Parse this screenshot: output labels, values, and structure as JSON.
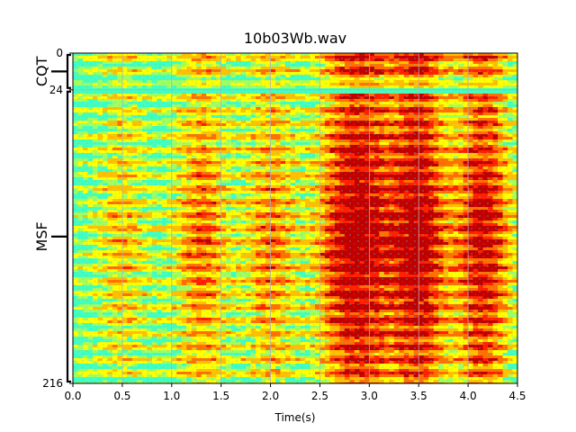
{
  "chart_data": {
    "type": "heatmap",
    "title": "10b03Wb.wav",
    "xlabel": "Time(s)",
    "xlim": [
      0.0,
      4.5
    ],
    "x_ticks": [
      0.0,
      0.5,
      1.0,
      1.5,
      2.0,
      2.5,
      3.0,
      3.5,
      4.0,
      4.5
    ],
    "x_tick_labels": [
      "0.0",
      "0.5",
      "1.0",
      "1.5",
      "2.0",
      "2.5",
      "3.0",
      "3.5",
      "4.0",
      "4.5"
    ],
    "ylim": [
      216,
      0
    ],
    "y_ticks": [
      0,
      24,
      216
    ],
    "y_tick_labels": [
      "0",
      "24",
      "216"
    ],
    "y_groups": [
      {
        "label": "CQT",
        "start": 0,
        "end": 24
      },
      {
        "label": "MSF",
        "start": 24,
        "end": 216
      }
    ],
    "grid": true,
    "colormap": "jet",
    "colors": {
      "background": "#ffffff",
      "grid": "#b0b0b0",
      "low": "#40ffc0",
      "mid": "#ffff00",
      "high": "#ff2000",
      "peak": "#c00000"
    },
    "energy_peaks": [
      {
        "x": 0.5,
        "level": 0.35
      },
      {
        "x": 1.3,
        "level": 0.55
      },
      {
        "x": 2.0,
        "level": 0.5
      },
      {
        "x": 2.7,
        "level": 0.6
      },
      {
        "x": 3.0,
        "level": 0.7
      },
      {
        "x": 3.5,
        "level": 0.95
      },
      {
        "x": 4.15,
        "level": 0.85
      }
    ]
  }
}
